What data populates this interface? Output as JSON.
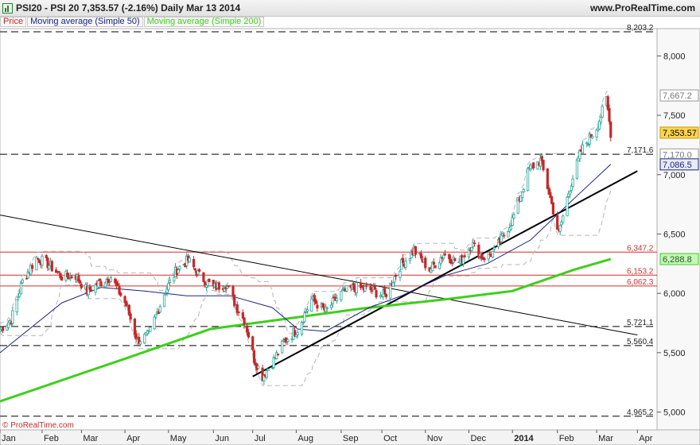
{
  "header": {
    "title": "PSI20 - PSI 20    7,353.57 (-2.16%)    Daily   Mar 13 2014",
    "brand": "www.ProRealTime.com"
  },
  "legend": {
    "price": "Price",
    "ma50": "Moving average (Simple 50)",
    "ma200": "Moving average (Simple 200)"
  },
  "footer": {
    "copyright": "© ProRealTime.com"
  },
  "colors": {
    "up": "#26a69a",
    "down": "#c62828",
    "ma50": "#1a237e",
    "ma200": "#3ecf1c",
    "resistance": "#d32f2f",
    "trend": "#000000",
    "envelope": "#b5b5b5"
  },
  "chart_data": {
    "type": "candlestick",
    "ylim": [
      4850,
      8230
    ],
    "y_ticks": [
      5000,
      5500,
      6000,
      6500,
      7000,
      7500,
      8000
    ],
    "y_tick_labels": [
      "5,000",
      "5,500",
      "6,000",
      "6,500",
      "7,000",
      "7,500",
      "8,000"
    ],
    "x_labels": [
      {
        "label": "Jan",
        "date": "2013-01-02"
      },
      {
        "label": "Feb",
        "date": "2013-02-01"
      },
      {
        "label": "Mar",
        "date": "2013-03-01"
      },
      {
        "label": "Apr",
        "date": "2013-04-01"
      },
      {
        "label": "May",
        "date": "2013-05-02"
      },
      {
        "label": "Jun",
        "date": "2013-06-03"
      },
      {
        "label": "Jul",
        "date": "2013-07-01"
      },
      {
        "label": "Aug",
        "date": "2013-08-01"
      },
      {
        "label": "Sep",
        "date": "2013-09-02"
      },
      {
        "label": "Oct",
        "date": "2013-10-01"
      },
      {
        "label": "Nov",
        "date": "2013-11-01"
      },
      {
        "label": "Dec",
        "date": "2013-12-02"
      },
      {
        "label": "2014",
        "date": "2014-01-02"
      },
      {
        "label": "Feb",
        "date": "2014-02-03"
      },
      {
        "label": "Mar",
        "date": "2014-03-03"
      },
      {
        "label": "Apr",
        "date": "2014-04-01"
      }
    ],
    "start_date": "2013-01-02",
    "end_date": "2014-03-13",
    "price_path": [
      [
        "2013-01-02",
        5700
      ],
      [
        "2013-01-10",
        5780
      ],
      [
        "2013-01-18",
        6100
      ],
      [
        "2013-01-28",
        6300
      ],
      [
        "2013-02-05",
        6250
      ],
      [
        "2013-02-15",
        6140
      ],
      [
        "2013-02-25",
        6150
      ],
      [
        "2013-03-05",
        6020
      ],
      [
        "2013-03-15",
        6100
      ],
      [
        "2013-03-22",
        6140
      ],
      [
        "2013-04-02",
        5900
      ],
      [
        "2013-04-10",
        5600
      ],
      [
        "2013-04-18",
        5650
      ],
      [
        "2013-04-29",
        6000
      ],
      [
        "2013-05-08",
        6200
      ],
      [
        "2013-05-16",
        6280
      ],
      [
        "2013-05-24",
        6150
      ],
      [
        "2013-06-03",
        6050
      ],
      [
        "2013-06-12",
        6080
      ],
      [
        "2013-06-19",
        5900
      ],
      [
        "2013-06-26",
        5750
      ],
      [
        "2013-07-02",
        5450
      ],
      [
        "2013-07-08",
        5300
      ],
      [
        "2013-07-15",
        5420
      ],
      [
        "2013-07-24",
        5600
      ],
      [
        "2013-08-02",
        5700
      ],
      [
        "2013-08-12",
        5950
      ],
      [
        "2013-08-22",
        5850
      ],
      [
        "2013-09-02",
        6000
      ],
      [
        "2013-09-12",
        6050
      ],
      [
        "2013-09-23",
        6030
      ],
      [
        "2013-10-03",
        5980
      ],
      [
        "2013-10-14",
        6230
      ],
      [
        "2013-10-24",
        6360
      ],
      [
        "2013-11-04",
        6200
      ],
      [
        "2013-11-14",
        6330
      ],
      [
        "2013-11-25",
        6260
      ],
      [
        "2013-12-04",
        6420
      ],
      [
        "2013-12-12",
        6300
      ],
      [
        "2013-12-20",
        6350
      ],
      [
        "2014-01-02",
        6620
      ],
      [
        "2014-01-14",
        7050
      ],
      [
        "2014-01-22",
        7120
      ],
      [
        "2014-01-28",
        6850
      ],
      [
        "2014-02-04",
        6500
      ],
      [
        "2014-02-12",
        6900
      ],
      [
        "2014-02-20",
        7200
      ],
      [
        "2014-03-03",
        7400
      ],
      [
        "2014-03-10",
        7630
      ],
      [
        "2014-03-13",
        7353.57
      ]
    ],
    "ma50_path": [
      [
        "2013-01-02",
        5500
      ],
      [
        "2013-02-15",
        5920
      ],
      [
        "2013-03-15",
        6050
      ],
      [
        "2013-04-15",
        6020
      ],
      [
        "2013-05-15",
        5980
      ],
      [
        "2013-06-15",
        5980
      ],
      [
        "2013-07-15",
        5880
      ],
      [
        "2013-08-02",
        5700
      ],
      [
        "2013-08-22",
        5680
      ],
      [
        "2013-09-22",
        5880
      ],
      [
        "2013-10-15",
        5980
      ],
      [
        "2013-11-15",
        6150
      ],
      [
        "2013-12-15",
        6250
      ],
      [
        "2014-01-15",
        6450
      ],
      [
        "2014-02-15",
        6800
      ],
      [
        "2014-03-13",
        7086.5
      ]
    ],
    "ma200_path": [
      [
        "2013-01-02",
        5090
      ],
      [
        "2013-04-01",
        5450
      ],
      [
        "2013-06-01",
        5700
      ],
      [
        "2013-07-15",
        5770
      ],
      [
        "2013-09-15",
        5870
      ],
      [
        "2013-11-15",
        5950
      ],
      [
        "2014-01-02",
        6020
      ],
      [
        "2014-02-15",
        6200
      ],
      [
        "2014-03-13",
        6288.8
      ]
    ],
    "horizontal_levels": [
      {
        "value": 8203.2,
        "label": "8,203.2",
        "style": "dashed",
        "color": "#000000"
      },
      {
        "value": 7171.6,
        "label": "7,171.6",
        "style": "dashed",
        "color": "#000000"
      },
      {
        "value": 6347.2,
        "label": "6,347.2",
        "style": "solid",
        "color": "#d32f2f"
      },
      {
        "value": 6153.2,
        "label": "6,153.2",
        "style": "solid",
        "color": "#d32f2f"
      },
      {
        "value": 6062.3,
        "label": "6,062.3",
        "style": "solid",
        "color": "#d32f2f"
      },
      {
        "value": 5721.1,
        "label": "5,721.1",
        "style": "dashed",
        "color": "#000000"
      },
      {
        "value": 5560.4,
        "label": "5,560.4",
        "style": "dashed",
        "color": "#000000"
      },
      {
        "value": 4965.2,
        "label": "4,965.2",
        "style": "dashed",
        "color": "#000000"
      }
    ],
    "trend_lines": [
      {
        "from": [
          "2013-01-02",
          6660
        ],
        "to": [
          "2014-04-01",
          5650
        ],
        "width": 1
      },
      {
        "from": [
          "2013-07-01",
          5300
        ],
        "to": [
          "2014-04-01",
          7030
        ],
        "width": 2
      }
    ],
    "price_tags": [
      {
        "value": 7667.2,
        "label": "7,667.2",
        "bg": "#ffffff",
        "fg": "#777777",
        "border": "#999999"
      },
      {
        "value": 7353.57,
        "label": "7,353.57",
        "bg": "#ffd54f",
        "fg": "#000000",
        "border": "#c79a00"
      },
      {
        "value": 7170.0,
        "label": "7,170.0",
        "bg": "#ffffff",
        "fg": "#777777",
        "border": "#999999"
      },
      {
        "value": 7086.5,
        "label": "7,086.5",
        "bg": "#e8eaf6",
        "fg": "#1a237e",
        "border": "#1a237e"
      },
      {
        "value": 6288.8,
        "label": "6,288.8",
        "bg": "#c8f5b8",
        "fg": "#1b5e20",
        "border": "#3ecf1c"
      }
    ]
  }
}
